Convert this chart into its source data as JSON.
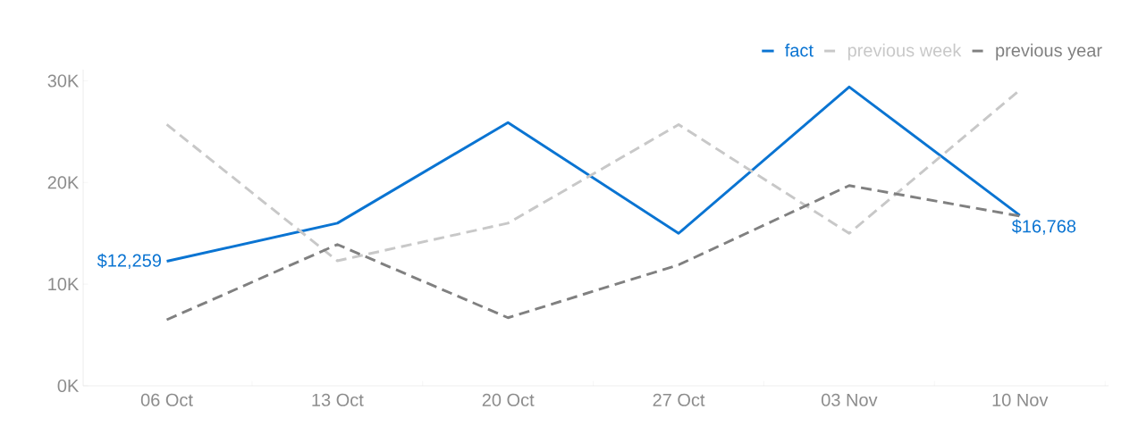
{
  "chart_data": {
    "type": "line",
    "categories": [
      "06 Oct",
      "13 Oct",
      "20 Oct",
      "27 Oct",
      "03 Nov",
      "10 Nov"
    ],
    "series": [
      {
        "name": "fact",
        "color": "#0a74d2",
        "line_style": "solid",
        "values": [
          12259,
          16000,
          25900,
          15000,
          29400,
          16768
        ],
        "value_labels": [
          "$12,259",
          null,
          null,
          null,
          null,
          "$16,768"
        ]
      },
      {
        "name": "previous week",
        "color": "#c8c8c8",
        "line_style": "dashed",
        "values": [
          25700,
          12300,
          16000,
          25700,
          15000,
          29100
        ]
      },
      {
        "name": "previous year",
        "color": "#808080",
        "line_style": "dashed",
        "values": [
          6500,
          13900,
          6700,
          11900,
          19700,
          16700
        ]
      }
    ],
    "ylim": [
      0,
      31100
    ],
    "yticks": [
      {
        "value": 0,
        "label": "0K"
      },
      {
        "value": 10000,
        "label": "10K"
      },
      {
        "value": 20000,
        "label": "20K"
      },
      {
        "value": 30000,
        "label": "30K"
      }
    ],
    "grid": false,
    "legend": "top right"
  }
}
